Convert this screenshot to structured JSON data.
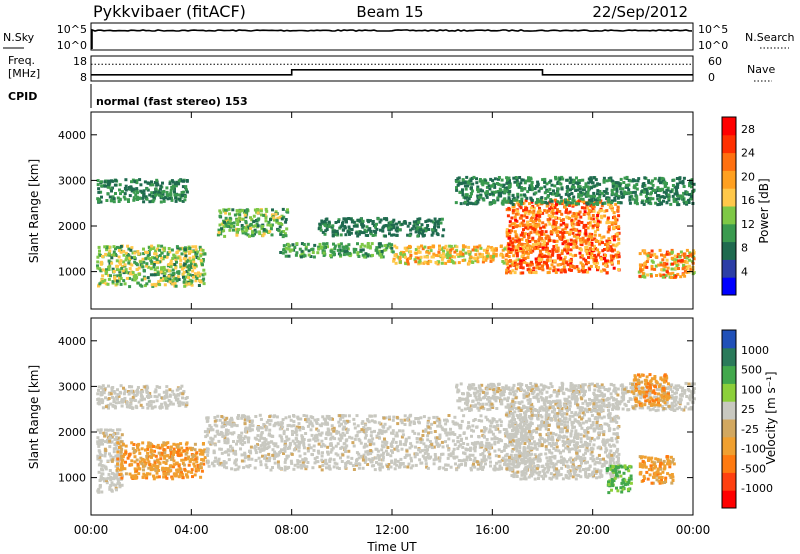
{
  "header": {
    "title": "Pykkvibaer (fitACF)",
    "beam": "Beam 15",
    "date": "22/Sep/2012"
  },
  "sky_panel": {
    "left_label": "N.Sky",
    "left_ticks": [
      "10^5",
      "10^0"
    ],
    "right_ticks": [
      "10^5",
      "10^0"
    ],
    "right_label": "N.Search"
  },
  "freq_panel": {
    "left_label_1": "Freq.",
    "left_label_2": "[MHz]",
    "left_ticks": [
      "18",
      "8"
    ],
    "right_ticks": [
      "60",
      "0"
    ],
    "right_label": "Nave",
    "nave_value": 40,
    "freq_segments": [
      {
        "t0": 0,
        "t1": 8,
        "value": 10.5
      },
      {
        "t0": 8,
        "t1": 18,
        "value": 12.5
      },
      {
        "t0": 18,
        "t1": 24,
        "value": 10.5
      }
    ]
  },
  "cpid": {
    "label": "CPID",
    "text": "normal (fast stereo) 153"
  },
  "colors": {
    "power": [
      "#0000ff",
      "#2c3ea6",
      "#1f6a4f",
      "#3a9a4f",
      "#7ec846",
      "#ffc84a",
      "#ffa020",
      "#ff7010",
      "#ff3000",
      "#ff0000"
    ],
    "velocity": [
      "#2050b8",
      "#2a7a5a",
      "#42a84c",
      "#8ccf3a",
      "#c8c8c0",
      "#d2a860",
      "#f0a030",
      "#ff7a10",
      "#ff4010",
      "#ff0000"
    ]
  },
  "chart_data": [
    {
      "type": "heatmap",
      "name": "power",
      "ylabel": "Slant Range [km]",
      "ylim": [
        180,
        4500
      ],
      "yticks": [
        "1000",
        "2000",
        "3000",
        "4000"
      ],
      "xlim": [
        0,
        24
      ],
      "colorbar": {
        "label": "Power [dB]",
        "ticks": [
          "4",
          "8",
          "12",
          "16",
          "20",
          "24",
          "28"
        ],
        "range": [
          0,
          30
        ]
      },
      "features": [
        {
          "t0": 0.2,
          "t1": 3.8,
          "r0": 2550,
          "r1": 3050,
          "v0": 6,
          "v1": 12
        },
        {
          "t0": 0.2,
          "t1": 4.5,
          "r0": 700,
          "r1": 1600,
          "v0": 8,
          "v1": 18
        },
        {
          "t0": 5.0,
          "t1": 7.8,
          "r0": 1800,
          "r1": 2400,
          "v0": 8,
          "v1": 16
        },
        {
          "t0": 7.5,
          "t1": 12.0,
          "r0": 1350,
          "r1": 1650,
          "v0": 8,
          "v1": 14
        },
        {
          "t0": 12.0,
          "t1": 17.5,
          "r0": 1200,
          "r1": 1600,
          "v0": 12,
          "v1": 22
        },
        {
          "t0": 16.5,
          "t1": 21.0,
          "r0": 1000,
          "r1": 2600,
          "v0": 16,
          "v1": 28
        },
        {
          "t0": 21.8,
          "t1": 24.0,
          "r0": 900,
          "r1": 1500,
          "v0": 12,
          "v1": 26
        },
        {
          "t0": 14.5,
          "t1": 24.0,
          "r0": 2500,
          "r1": 3100,
          "v0": 6,
          "v1": 12
        },
        {
          "t0": 9.0,
          "t1": 14.0,
          "r0": 1800,
          "r1": 2200,
          "v0": 6,
          "v1": 10
        }
      ]
    },
    {
      "type": "heatmap",
      "name": "velocity",
      "ylabel": "Slant Range [km]",
      "ylim": [
        180,
        4500
      ],
      "yticks": [
        "1000",
        "2000",
        "3000",
        "4000"
      ],
      "xlabel": "Time UT",
      "xticks": [
        "00:00",
        "04:00",
        "08:00",
        "12:00",
        "16:00",
        "20:00",
        "00:00"
      ],
      "xlim": [
        0,
        24
      ],
      "colorbar": {
        "label": "Velocity [m s⁻¹]",
        "ticks": [
          "1000",
          "500",
          "100",
          "25",
          "-25",
          "-100",
          "-500",
          "-1000"
        ]
      },
      "features": [
        {
          "t0": 0.2,
          "t1": 3.8,
          "r0": 2550,
          "r1": 3050,
          "v": "grey"
        },
        {
          "t0": 0.2,
          "t1": 1.2,
          "r0": 700,
          "r1": 2100,
          "v": "grey"
        },
        {
          "t0": 1.0,
          "t1": 4.5,
          "r0": 1000,
          "r1": 1800,
          "v": "orange"
        },
        {
          "t0": 4.5,
          "t1": 17.5,
          "r0": 1200,
          "r1": 2400,
          "v": "grey"
        },
        {
          "t0": 16.5,
          "t1": 21.0,
          "r0": 1000,
          "r1": 2600,
          "v": "grey"
        },
        {
          "t0": 21.8,
          "t1": 23.2,
          "r0": 900,
          "r1": 1500,
          "v": "orange"
        },
        {
          "t0": 20.5,
          "t1": 21.5,
          "r0": 700,
          "r1": 1300,
          "v": "green"
        },
        {
          "t0": 14.5,
          "t1": 24.0,
          "r0": 2500,
          "r1": 3100,
          "v": "grey"
        },
        {
          "t0": 21.5,
          "t1": 23.0,
          "r0": 2600,
          "r1": 3300,
          "v": "orange"
        }
      ]
    }
  ]
}
